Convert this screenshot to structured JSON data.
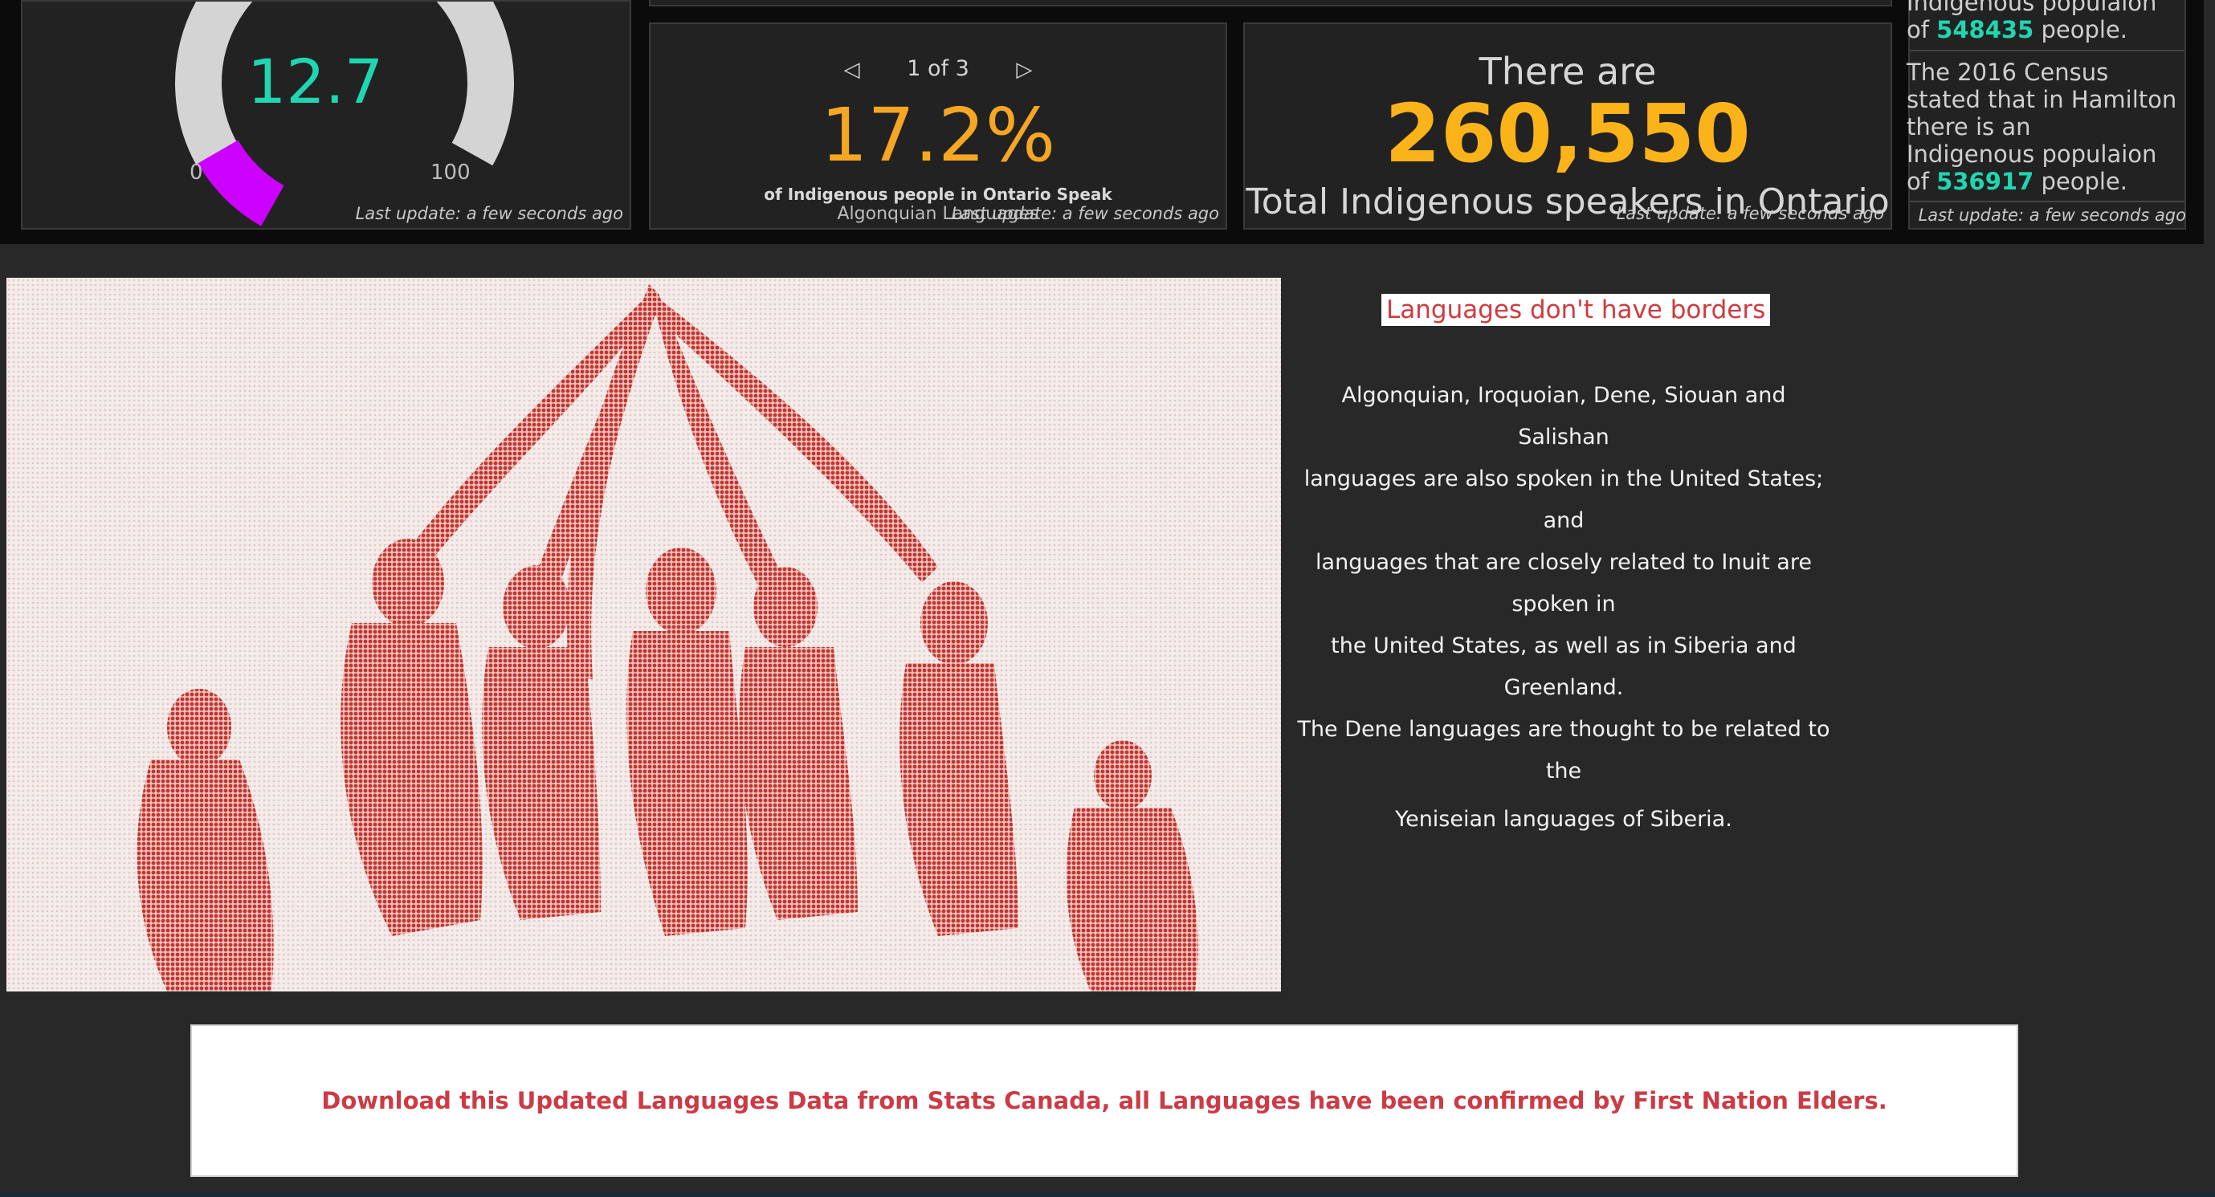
{
  "colors": {
    "teal": "#1fd6b0",
    "orange": "#fbb31a",
    "magenta": "#cc00ff",
    "red_accent": "#cf3a3f",
    "panel_bg": "#222222",
    "page_bg": "#282828"
  },
  "gauge": {
    "value": "12.7",
    "min": "0",
    "max": "100",
    "fill_fraction": 0.127,
    "last_update": "Last update: a few seconds ago"
  },
  "indicator_pct": {
    "pager": "1 of 3",
    "value": "17.2%",
    "description": "of Indigenous people in Ontario Speak",
    "subtitle": "Algonquian Languages",
    "last_update": "Last update: a few seconds ago"
  },
  "indicator_total": {
    "prefix": "There are",
    "value": "260,550",
    "label": "Total Indigenous speakers in Ontario",
    "last_update": "Last update: a few seconds ago"
  },
  "census_list": {
    "item1": {
      "partial_line": "Indigenous populaion",
      "of_text": "of",
      "number": "548435",
      "suffix": "people."
    },
    "item2": {
      "line1": "The 2016 Census",
      "line2": "stated that in  Hamilton",
      "line3": "there is an",
      "line4": "Indigenous populaion",
      "of_text": "of",
      "number": "536917",
      "suffix": "people."
    },
    "last_update": "Last update: a few seconds ago"
  },
  "article": {
    "heading": "Languages don't have borders",
    "lines": [
      "Algonquian, Iroquoian, Dene, Siouan and Salishan",
      "languages are also spoken in the United States; and",
      "languages that are closely related to Inuit are spoken in",
      "the United States, as well as in Siberia and Greenland.",
      "The Dene languages are thought to be related to the",
      "Yeniseian languages of Siberia."
    ]
  },
  "download_banner": {
    "text": "Download this Updated Languages Data from Stats Canada, all Languages have been confirmed by First Nation Elders."
  },
  "icons": [
    "chevron-left-icon",
    "chevron-right-icon"
  ]
}
